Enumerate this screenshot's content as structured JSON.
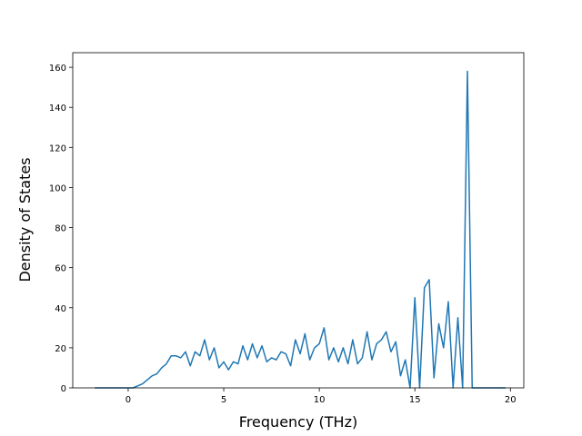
{
  "chart_data": {
    "type": "line",
    "xlabel": "Frequency (THz)",
    "ylabel": "Density of States",
    "x": [
      -1.75,
      -1.5,
      -1.25,
      -1,
      -0.75,
      -0.5,
      -0.25,
      0,
      0.25,
      0.5,
      0.75,
      1,
      1.25,
      1.5,
      1.75,
      2,
      2.25,
      2.5,
      2.75,
      3,
      3.25,
      3.5,
      3.75,
      4,
      4.25,
      4.5,
      4.75,
      5,
      5.25,
      5.5,
      5.75,
      6,
      6.25,
      6.5,
      6.75,
      7,
      7.25,
      7.5,
      7.75,
      8,
      8.25,
      8.5,
      8.75,
      9,
      9.25,
      9.5,
      9.75,
      10,
      10.25,
      10.5,
      10.75,
      11,
      11.25,
      11.5,
      11.75,
      12,
      12.25,
      12.5,
      12.75,
      13,
      13.25,
      13.5,
      13.75,
      14,
      14.25,
      14.5,
      14.75,
      15,
      15.25,
      15.5,
      15.75,
      16,
      16.25,
      16.5,
      16.75,
      17,
      17.25,
      17.5,
      17.75,
      18,
      18.25,
      18.5,
      18.75,
      19,
      19.25,
      19.5,
      19.75
    ],
    "series": [
      {
        "color": "#1f77b4",
        "values": [
          0,
          0,
          0,
          0,
          0,
          0,
          0,
          0,
          0,
          1,
          2,
          4,
          6,
          7,
          10,
          12,
          16,
          16,
          15,
          18,
          11,
          18,
          16,
          24,
          14,
          20,
          10,
          13,
          9,
          13,
          12,
          21,
          14,
          22,
          15,
          21,
          13,
          15,
          14,
          18,
          17,
          11,
          24,
          17,
          27,
          14,
          20,
          22,
          30,
          14,
          20,
          13,
          20,
          12,
          24,
          12,
          15,
          28,
          14,
          22,
          24,
          28,
          18,
          23,
          6,
          14,
          0,
          45,
          0,
          50,
          54,
          5,
          32,
          20,
          43,
          0,
          35,
          0,
          158,
          0,
          0,
          0,
          0,
          0,
          0,
          0,
          0
        ]
      }
    ],
    "xlim": [
      -2.9,
      20.7
    ],
    "ylim": [
      0,
      167.3
    ],
    "xticks": [
      0,
      5,
      10,
      15,
      20
    ],
    "yticks": [
      0,
      20,
      40,
      60,
      80,
      100,
      120,
      140,
      160
    ]
  }
}
